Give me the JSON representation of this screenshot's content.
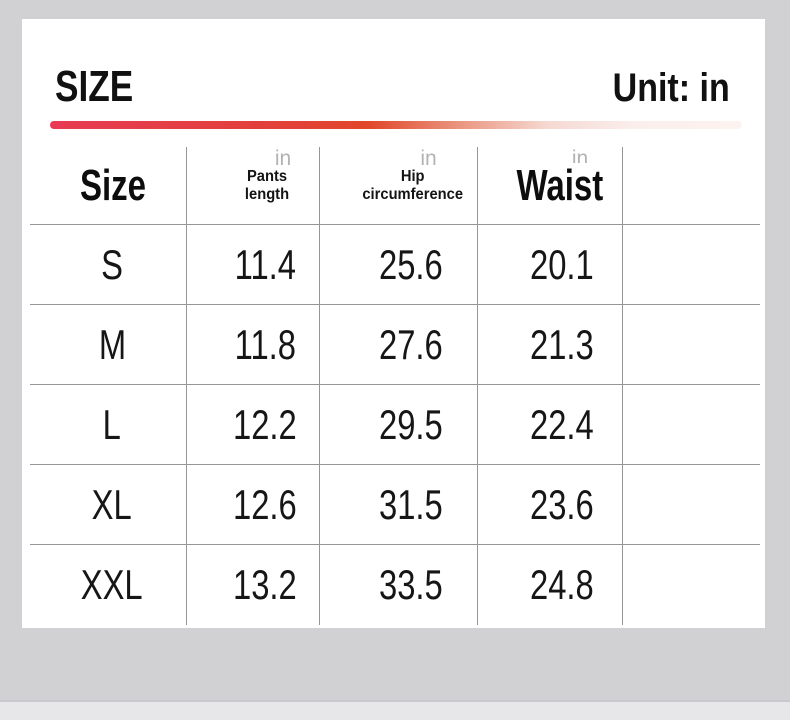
{
  "page": {
    "title": "SIZE",
    "unit_label": "Unit: in"
  },
  "size_chart": {
    "headers": {
      "size": "Size",
      "pants_length": [
        "Pants",
        "length"
      ],
      "hip_circumference": [
        "Hip",
        "circumference"
      ],
      "waist": "Waist",
      "unit_watermark": "in"
    },
    "rows": [
      {
        "size": "S",
        "pants_length": "11.4",
        "hip_circumference": "25.6",
        "waist": "20.1"
      },
      {
        "size": "M",
        "pants_length": "11.8",
        "hip_circumference": "27.6",
        "waist": "21.3"
      },
      {
        "size": "L",
        "pants_length": "12.2",
        "hip_circumference": "29.5",
        "waist": "22.4"
      },
      {
        "size": "XL",
        "pants_length": "12.6",
        "hip_circumference": "31.5",
        "waist": "23.6"
      },
      {
        "size": "XXL",
        "pants_length": "13.2",
        "hip_circumference": "33.5",
        "waist": "24.8"
      }
    ]
  },
  "colors": {
    "accent_gradient_start": "#e73c52",
    "accent_gradient_mid": "#e1472b",
    "accent_gradient_end": "#fcf2f0",
    "page_background": "#d1d1d4",
    "bottom_strip": "#e7e7ea",
    "card_background": "#ffffff",
    "grid_line": "#969696",
    "watermark_gray": "#b3b3b3",
    "text_color": "#111111"
  }
}
